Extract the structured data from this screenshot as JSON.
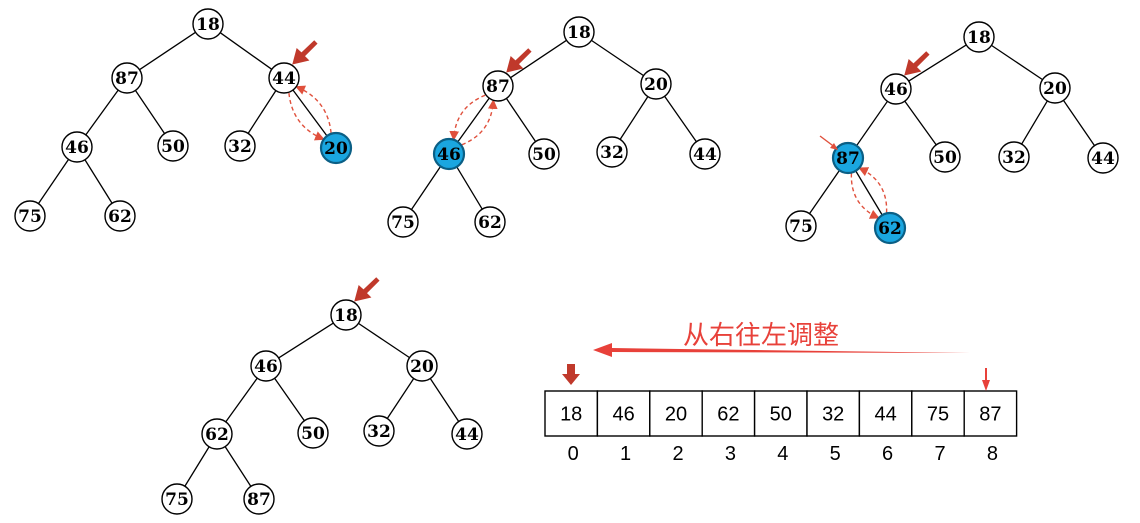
{
  "trees": [
    {
      "nodes": [
        "18",
        "87",
        "44",
        "46",
        "50",
        "32",
        "20",
        "75",
        "62"
      ],
      "highlight": [
        6
      ],
      "current": 2,
      "swap": [
        2,
        6
      ]
    },
    {
      "nodes": [
        "18",
        "87",
        "20",
        "46",
        "50",
        "32",
        "44",
        "75",
        "62"
      ],
      "highlight": [
        3
      ],
      "current": 1,
      "swap": [
        1,
        3
      ]
    },
    {
      "nodes": [
        "18",
        "46",
        "20",
        "87",
        "50",
        "32",
        "44",
        "75",
        "62"
      ],
      "highlight": [
        3,
        8
      ],
      "current": 1,
      "swap": [
        3,
        8
      ]
    },
    {
      "nodes": [
        "18",
        "46",
        "20",
        "62",
        "50",
        "32",
        "44",
        "75",
        "87"
      ],
      "highlight": [],
      "current": 0,
      "swap": null
    }
  ],
  "array": {
    "values": [
      "18",
      "46",
      "20",
      "62",
      "50",
      "32",
      "44",
      "75",
      "87"
    ],
    "indices": [
      "0",
      "1",
      "2",
      "3",
      "4",
      "5",
      "6",
      "7",
      "8"
    ]
  },
  "caption": "从右往左调整",
  "colors": {
    "highlight_fill": "#1aa6e0",
    "arrow": "#c0392b",
    "caption": "#e8413a"
  }
}
